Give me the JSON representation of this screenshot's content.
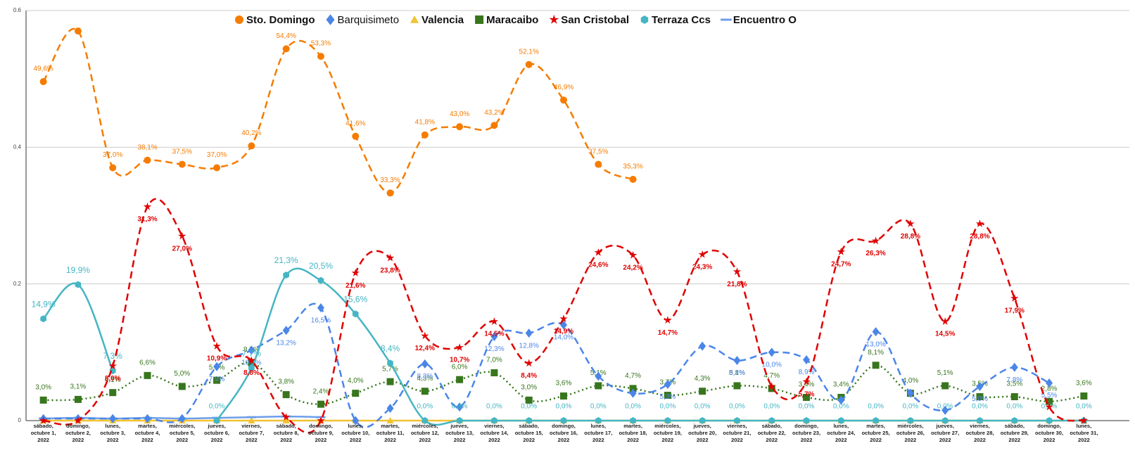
{
  "chart_data": {
    "type": "line",
    "categories": [
      "sábado, octubre 1, 2022",
      "domingo, octubre 2, 2022",
      "lunes, octubre 3, 2022",
      "martes, octubre 4, 2022",
      "miércoles, octubre 5, 2022",
      "jueves, octubre 6, 2022",
      "viernes, octubre 7, 2022",
      "sábado, octubre 8, 2022",
      "domingo, octubre 9, 2022",
      "lunes, octubre 10, 2022",
      "martes, octubre 11, 2022",
      "miércoles, octubre 12, 2022",
      "jueves, octubre 13, 2022",
      "viernes, octubre 14, 2022",
      "sábado, octubre 15, 2022",
      "domingo, octubre 16, 2022",
      "lunes, octubre 17, 2022",
      "martes, octubre 18, 2022",
      "miércoles, octubre 19, 2022",
      "jueves, octubre 20, 2022",
      "viernes, octubre 21, 2022",
      "sábado, octubre 22, 2022",
      "domingo, octubre 23, 2022",
      "lunes, octubre 24, 2022",
      "martes, octubre 25, 2022",
      "miércoles, octubre 26, 2022",
      "jueves, octubre 27, 2022",
      "viernes, octubre 28, 2022",
      "sábado, octubre 29, 2022",
      "domingo, octubre 30, 2022",
      "lunes, octubre 31, 2022"
    ],
    "series": [
      {
        "name": "Sto. Domingo",
        "color": "#f57c00",
        "marker": "circle",
        "line_style": "dashed",
        "values": [
          0.496,
          0.57,
          0.37,
          0.381,
          0.375,
          0.37,
          0.402,
          0.544,
          0.533,
          0.416,
          0.333,
          0.418,
          0.43,
          0.432,
          0.521,
          0.469,
          0.375,
          0.353,
          null,
          null,
          null,
          null,
          null,
          null,
          null,
          null,
          null,
          null,
          null,
          null,
          null
        ],
        "value_labels": [
          "49,6%",
          null,
          "37,0%",
          "38,1%",
          "37,5%",
          "37,0%",
          "40,2%",
          "54,4%",
          "53,3%",
          "41,6%",
          "33,3%",
          "41,8%",
          "43,0%",
          "43,2%",
          "52,1%",
          "46,9%",
          "37,5%",
          "35,3%",
          null,
          null,
          null,
          null,
          null,
          null,
          null,
          null,
          null,
          null,
          null,
          null,
          null
        ]
      },
      {
        "name": "Barquisimeto",
        "color": "#4a86e8",
        "marker": "diamond",
        "line_style": "dashed",
        "values": [
          0.003,
          0.003,
          0.003,
          0.003,
          0.003,
          0.079,
          0.103,
          0.132,
          0.165,
          0.0,
          0.018,
          0.083,
          0.02,
          0.123,
          0.128,
          0.14,
          0.065,
          0.04,
          0.053,
          0.109,
          0.088,
          0.1,
          0.089,
          0.03,
          0.13,
          0.04,
          0.015,
          0.05,
          0.078,
          0.055,
          null
        ],
        "value_labels": [
          null,
          null,
          null,
          null,
          null,
          "7,9%",
          "10,3%",
          "13,2%",
          "16,5%",
          null,
          null,
          "8,3%",
          null,
          "12,3%",
          "12,8%",
          "14,0%",
          null,
          null,
          "5,3%",
          null,
          "8,8%",
          "10,0%",
          "8,9%",
          null,
          "13,0%",
          null,
          null,
          "5,0%",
          "7,8%",
          "5,5%",
          null
        ]
      },
      {
        "name": "Valencia",
        "color": "#f1c232",
        "marker": "triangle",
        "line_style": "solid",
        "values": [
          0,
          0,
          0,
          0,
          0,
          0,
          0,
          0,
          0,
          0,
          0,
          0,
          0,
          0,
          0,
          0,
          0,
          0,
          0,
          0,
          0,
          0,
          0,
          0,
          0,
          0,
          0,
          0,
          0,
          0,
          0
        ]
      },
      {
        "name": "Maracaibo",
        "color": "#38761d",
        "marker": "square",
        "line_style": "dotted",
        "values": [
          0.03,
          0.031,
          0.041,
          0.066,
          0.05,
          0.059,
          0.085,
          0.038,
          0.024,
          0.04,
          0.057,
          0.043,
          0.06,
          0.07,
          0.03,
          0.036,
          0.051,
          0.047,
          0.037,
          0.043,
          0.051,
          0.047,
          0.034,
          0.034,
          0.081,
          0.04,
          0.051,
          0.035,
          0.035,
          0.028,
          0.036
        ],
        "value_labels": [
          "3,0%",
          "3,1%",
          "4,1%",
          "6,6%",
          "5,0%",
          "5,9%",
          "8,5%",
          "3,8%",
          "2,4%",
          "4,0%",
          "5,7%",
          "4,3%",
          "6,0%",
          "7,0%",
          "3,0%",
          "3,6%",
          "5,1%",
          "4,7%",
          "3,7%",
          "4,3%",
          "5,1%",
          "4,7%",
          "3,4%",
          "3,4%",
          "8,1%",
          "4,0%",
          "5,1%",
          "3,5%",
          "3,5%",
          "2,8%",
          "3,6%"
        ]
      },
      {
        "name": "San Cristobal",
        "color": "#e00000",
        "marker": "star",
        "line_style": "dashed",
        "values": [
          0.0,
          0.0,
          0.08,
          0.313,
          0.27,
          0.109,
          0.088,
          0.005,
          0.0,
          0.216,
          0.238,
          0.124,
          0.107,
          0.145,
          0.084,
          0.149,
          0.246,
          0.242,
          0.147,
          0.243,
          0.218,
          0.05,
          0.057,
          0.247,
          0.263,
          0.288,
          0.145,
          0.288,
          0.179,
          0.02,
          0.0
        ],
        "value_labels": [
          null,
          null,
          "8,0%",
          "31,3%",
          "27,0%",
          "10,9%",
          "8,8%",
          null,
          null,
          "21,6%",
          "23,8%",
          "12,4%",
          "10,7%",
          "14,5%",
          "8,4%",
          "14,9%",
          "24,6%",
          "24,2%",
          "14,7%",
          "24,3%",
          "21,8%",
          null,
          "5,7%",
          "24,7%",
          "26,3%",
          "28,8%",
          "14,5%",
          "28,8%",
          "17,9%",
          null,
          null
        ]
      },
      {
        "name": "Terraza Ccs",
        "color": "#45b5c4",
        "marker": "hexagon",
        "line_style": "solid",
        "values": [
          0.149,
          0.199,
          0.073,
          null,
          null,
          0.0,
          0.077,
          0.213,
          0.205,
          0.156,
          0.084,
          0.0,
          0.0,
          0.0,
          0.0,
          0.0,
          0.0,
          0.0,
          0.0,
          0.0,
          0.0,
          0.0,
          0.0,
          0.0,
          0.0,
          0.0,
          0.0,
          0.0,
          0.0,
          0.0,
          0.0
        ],
        "value_labels": [
          "14,9%",
          "19,9%",
          "7,3%",
          null,
          null,
          "0,0%",
          "7,7%",
          "21,3%",
          "20,5%",
          "15,6%",
          "8,4%",
          "0,0%",
          "0,0%",
          "0,0%",
          "0,0%",
          "0,0%",
          "0,0%",
          "0,0%",
          "0,0%",
          "0,0%",
          "0,0%",
          "0,0%",
          "0,0%",
          "0,0%",
          "0,0%",
          "0,0%",
          "0,0%",
          "0,0%",
          "0,0%",
          "0,0%",
          "0,0%"
        ]
      },
      {
        "name": "Encuentro O",
        "color": "#6d9eeb",
        "marker": "dash",
        "line_style": "solid",
        "values": [
          0.003,
          0.004,
          0.003,
          0.004,
          0.003,
          0.004,
          0.005,
          0.006,
          0.005,
          null,
          null,
          null,
          null,
          null,
          null,
          null,
          null,
          null,
          null,
          null,
          null,
          null,
          null,
          null,
          null,
          null,
          null,
          null,
          null,
          null,
          null
        ]
      }
    ],
    "ylim": [
      0,
      0.6
    ],
    "yticks": [
      0,
      0.2,
      0.4,
      0.6
    ],
    "grid": true,
    "legend": "top"
  }
}
